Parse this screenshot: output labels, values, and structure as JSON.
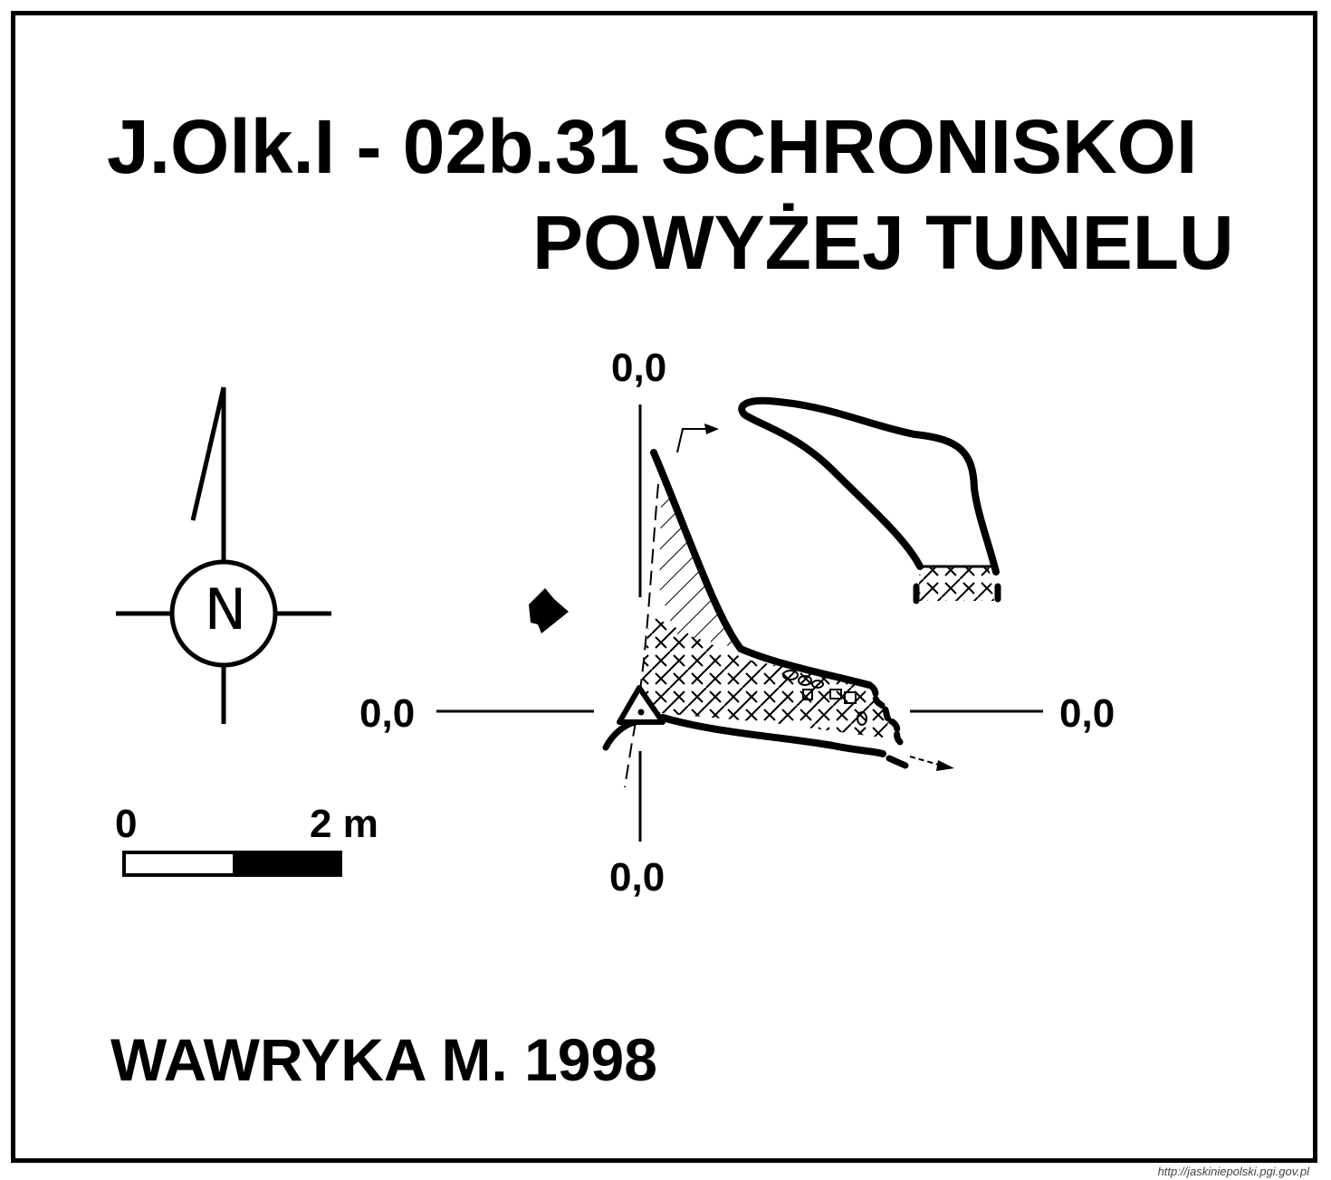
{
  "title": {
    "line1": "J.Olk.I - 02b.31 SCHRONISKOI",
    "line2": "POWYŻEJ TUNELU"
  },
  "levels": {
    "top": "0,0",
    "left": "0,0",
    "right": "0,0",
    "bottom": "0,0"
  },
  "compass": {
    "letter": "N",
    "icon": "north-arrow-icon"
  },
  "scale": {
    "start": "0",
    "end": "2 m"
  },
  "author": "WAWRYKA M. 1998",
  "url": "http://jaskiniepolski.pgi.gov.pl"
}
